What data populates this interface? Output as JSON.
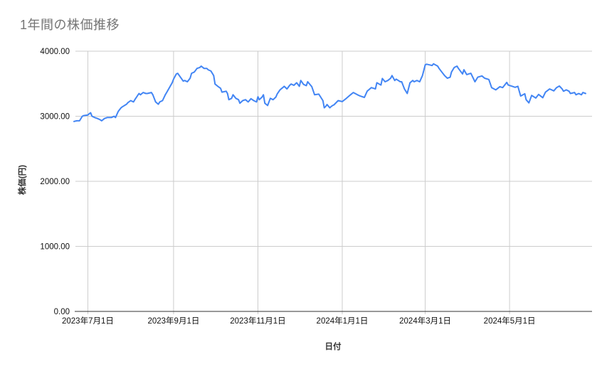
{
  "chart_data": {
    "type": "line",
    "title": "1年間の株価推移",
    "xlabel": "日付",
    "ylabel": "株価(円)",
    "ylim": [
      0,
      4000
    ],
    "x_start_date": "2023-06-21",
    "x_unit": "days_since_start",
    "grid": true,
    "legend": "none",
    "colors": {
      "line": "#4285f4",
      "grid": "#cccccc",
      "axis": "#333333",
      "title": "#757575"
    },
    "y_ticks": [
      {
        "value": 0,
        "label": "0.00"
      },
      {
        "value": 1000,
        "label": "1000.00"
      },
      {
        "value": 2000,
        "label": "2000.00"
      },
      {
        "value": 3000,
        "label": "3000.00"
      },
      {
        "value": 4000,
        "label": "4000.00"
      }
    ],
    "x_ticks": [
      {
        "offset": 10,
        "label": "2023年7月1日"
      },
      {
        "offset": 72,
        "label": "2023年9月1日"
      },
      {
        "offset": 133,
        "label": "2023年11月1日"
      },
      {
        "offset": 194,
        "label": "2024年1月1日"
      },
      {
        "offset": 254,
        "label": "2024年3月1日"
      },
      {
        "offset": 315,
        "label": "2024年5月1日"
      }
    ],
    "series": [
      {
        "name": "株価",
        "points": [
          [
            0,
            2920
          ],
          [
            2,
            2930
          ],
          [
            4,
            2930
          ],
          [
            6,
            3000
          ],
          [
            7,
            3010
          ],
          [
            10,
            3020
          ],
          [
            12,
            3055
          ],
          [
            13,
            3000
          ],
          [
            15,
            2980
          ],
          [
            17,
            2965
          ],
          [
            19,
            2945
          ],
          [
            20,
            2930
          ],
          [
            22,
            2965
          ],
          [
            24,
            2980
          ],
          [
            27,
            2980
          ],
          [
            29,
            3000
          ],
          [
            30,
            2980
          ],
          [
            32,
            3075
          ],
          [
            34,
            3130
          ],
          [
            35,
            3145
          ],
          [
            38,
            3185
          ],
          [
            39,
            3210
          ],
          [
            41,
            3240
          ],
          [
            43,
            3220
          ],
          [
            44,
            3255
          ],
          [
            47,
            3350
          ],
          [
            48,
            3330
          ],
          [
            50,
            3365
          ],
          [
            52,
            3350
          ],
          [
            53,
            3350
          ],
          [
            56,
            3365
          ],
          [
            57,
            3330
          ],
          [
            59,
            3220
          ],
          [
            61,
            3185
          ],
          [
            62,
            3220
          ],
          [
            64,
            3240
          ],
          [
            66,
            3330
          ],
          [
            67,
            3365
          ],
          [
            69,
            3440
          ],
          [
            71,
            3515
          ],
          [
            72,
            3570
          ],
          [
            74,
            3650
          ],
          [
            75,
            3660
          ],
          [
            77,
            3600
          ],
          [
            79,
            3540
          ],
          [
            80,
            3550
          ],
          [
            82,
            3530
          ],
          [
            84,
            3585
          ],
          [
            85,
            3660
          ],
          [
            87,
            3680
          ],
          [
            89,
            3735
          ],
          [
            91,
            3750
          ],
          [
            92,
            3770
          ],
          [
            94,
            3735
          ],
          [
            96,
            3735
          ],
          [
            97,
            3715
          ],
          [
            99,
            3695
          ],
          [
            101,
            3625
          ],
          [
            102,
            3495
          ],
          [
            104,
            3460
          ],
          [
            106,
            3430
          ],
          [
            107,
            3370
          ],
          [
            110,
            3385
          ],
          [
            111,
            3350
          ],
          [
            112,
            3255
          ],
          [
            114,
            3275
          ],
          [
            115,
            3330
          ],
          [
            117,
            3275
          ],
          [
            119,
            3255
          ],
          [
            120,
            3200
          ],
          [
            122,
            3240
          ],
          [
            124,
            3255
          ],
          [
            126,
            3220
          ],
          [
            128,
            3270
          ],
          [
            130,
            3240
          ],
          [
            132,
            3220
          ],
          [
            133,
            3300
          ],
          [
            134,
            3255
          ],
          [
            136,
            3295
          ],
          [
            137,
            3330
          ],
          [
            138,
            3200
          ],
          [
            140,
            3165
          ],
          [
            142,
            3275
          ],
          [
            144,
            3255
          ],
          [
            146,
            3295
          ],
          [
            147,
            3345
          ],
          [
            149,
            3405
          ],
          [
            151,
            3440
          ],
          [
            152,
            3460
          ],
          [
            154,
            3420
          ],
          [
            156,
            3475
          ],
          [
            157,
            3495
          ],
          [
            159,
            3475
          ],
          [
            161,
            3515
          ],
          [
            163,
            3460
          ],
          [
            164,
            3550
          ],
          [
            166,
            3490
          ],
          [
            168,
            3470
          ],
          [
            169,
            3530
          ],
          [
            172,
            3455
          ],
          [
            174,
            3330
          ],
          [
            177,
            3340
          ],
          [
            180,
            3240
          ],
          [
            181,
            3130
          ],
          [
            182,
            3150
          ],
          [
            183,
            3180
          ],
          [
            185,
            3130
          ],
          [
            186,
            3150
          ],
          [
            187,
            3165
          ],
          [
            188,
            3175
          ],
          [
            191,
            3240
          ],
          [
            194,
            3225
          ],
          [
            197,
            3275
          ],
          [
            200,
            3330
          ],
          [
            202,
            3365
          ],
          [
            205,
            3330
          ],
          [
            207,
            3310
          ],
          [
            210,
            3290
          ],
          [
            212,
            3385
          ],
          [
            215,
            3440
          ],
          [
            218,
            3420
          ],
          [
            219,
            3515
          ],
          [
            222,
            3480
          ],
          [
            223,
            3580
          ],
          [
            225,
            3530
          ],
          [
            227,
            3550
          ],
          [
            229,
            3585
          ],
          [
            230,
            3625
          ],
          [
            232,
            3550
          ],
          [
            233,
            3570
          ],
          [
            236,
            3530
          ],
          [
            237,
            3530
          ],
          [
            239,
            3420
          ],
          [
            241,
            3350
          ],
          [
            243,
            3515
          ],
          [
            245,
            3550
          ],
          [
            246,
            3530
          ],
          [
            248,
            3550
          ],
          [
            250,
            3530
          ],
          [
            252,
            3625
          ],
          [
            254,
            3790
          ],
          [
            255,
            3800
          ],
          [
            257,
            3790
          ],
          [
            259,
            3780
          ],
          [
            260,
            3805
          ],
          [
            263,
            3770
          ],
          [
            264,
            3735
          ],
          [
            266,
            3680
          ],
          [
            268,
            3625
          ],
          [
            270,
            3585
          ],
          [
            272,
            3600
          ],
          [
            273,
            3680
          ],
          [
            275,
            3750
          ],
          [
            277,
            3770
          ],
          [
            278,
            3735
          ],
          [
            281,
            3650
          ],
          [
            282,
            3715
          ],
          [
            284,
            3640
          ],
          [
            287,
            3660
          ],
          [
            290,
            3530
          ],
          [
            292,
            3600
          ],
          [
            295,
            3620
          ],
          [
            297,
            3585
          ],
          [
            300,
            3565
          ],
          [
            302,
            3440
          ],
          [
            305,
            3405
          ],
          [
            308,
            3455
          ],
          [
            310,
            3440
          ],
          [
            313,
            3520
          ],
          [
            314,
            3480
          ],
          [
            317,
            3460
          ],
          [
            319,
            3445
          ],
          [
            321,
            3460
          ],
          [
            323,
            3310
          ],
          [
            326,
            3345
          ],
          [
            327,
            3255
          ],
          [
            329,
            3205
          ],
          [
            331,
            3320
          ],
          [
            334,
            3280
          ],
          [
            336,
            3335
          ],
          [
            339,
            3285
          ],
          [
            341,
            3370
          ],
          [
            344,
            3420
          ],
          [
            347,
            3390
          ],
          [
            349,
            3440
          ],
          [
            351,
            3465
          ],
          [
            353,
            3420
          ],
          [
            354,
            3385
          ],
          [
            356,
            3405
          ],
          [
            358,
            3385
          ],
          [
            359,
            3350
          ],
          [
            362,
            3365
          ],
          [
            363,
            3330
          ],
          [
            365,
            3350
          ],
          [
            367,
            3330
          ],
          [
            368,
            3365
          ],
          [
            370,
            3350
          ]
        ]
      }
    ]
  }
}
